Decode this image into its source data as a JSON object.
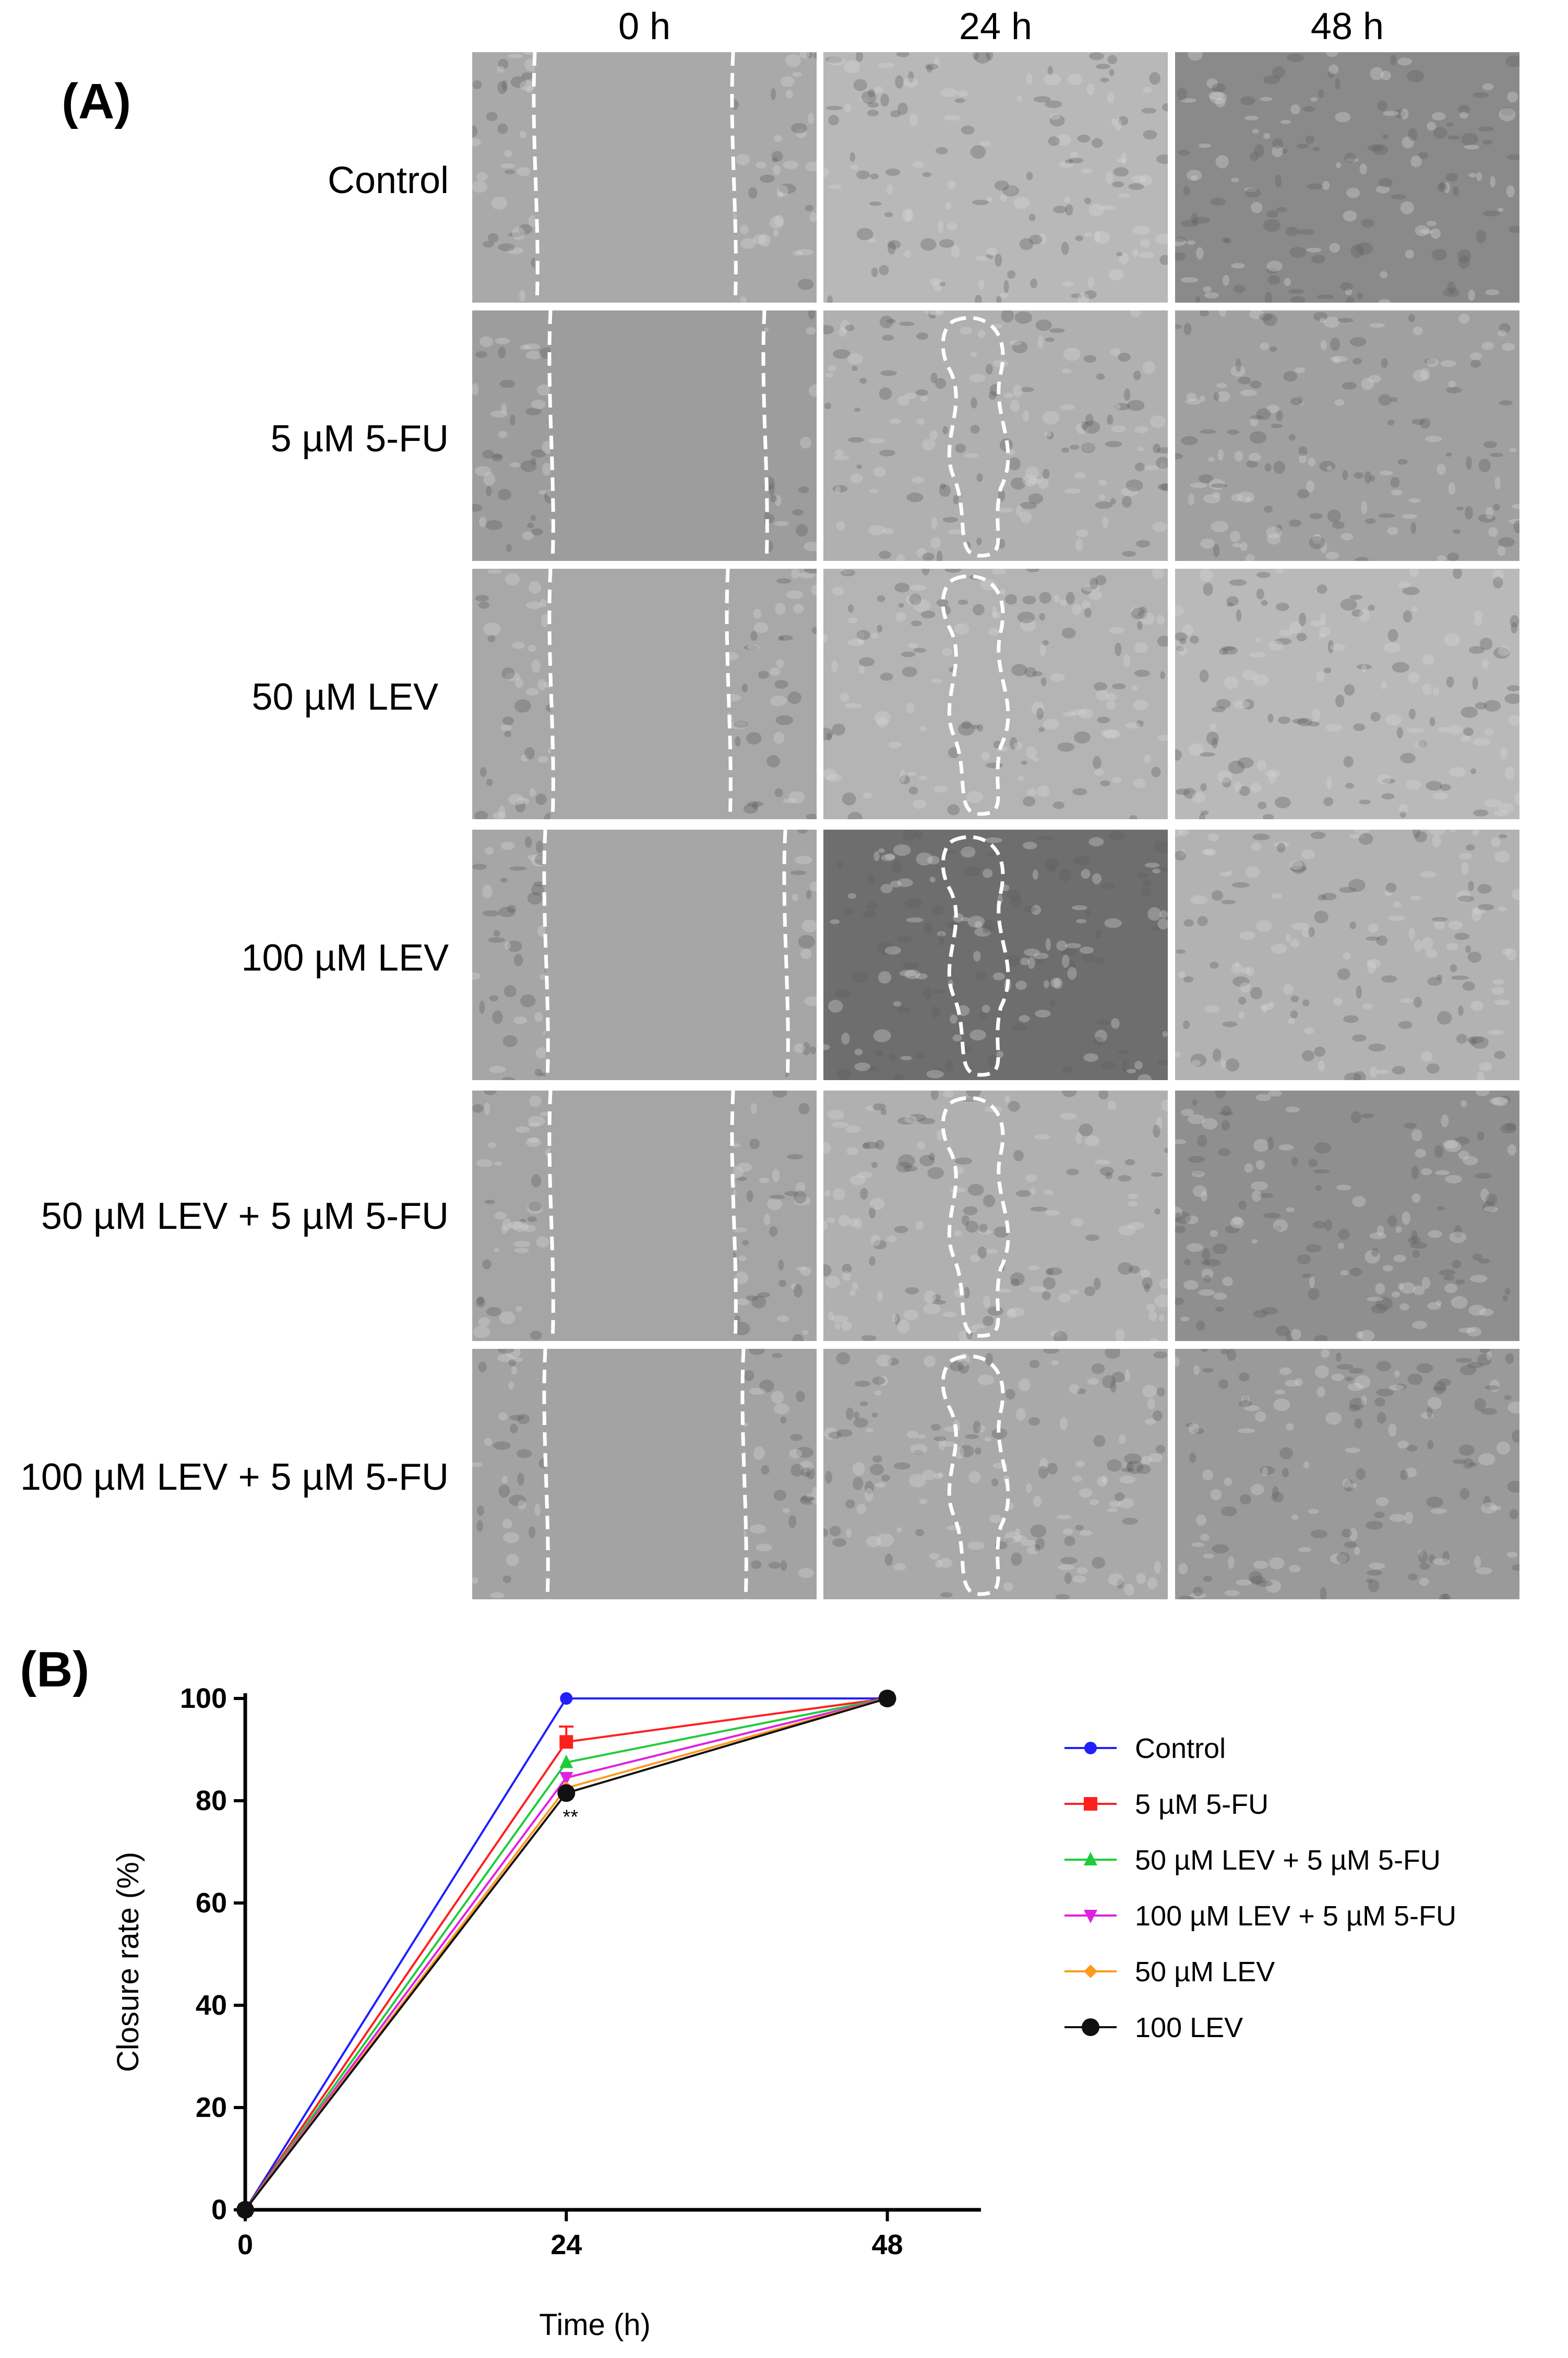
{
  "panel_a": {
    "label": "(A)",
    "columns": [
      "0 h",
      "24 h",
      "48 h"
    ],
    "rows": [
      "Control",
      "5 µM 5-FU",
      "50 µM LEV",
      "100 µM LEV",
      "50 µM LEV + 5 µM 5-FU",
      "100 µM LEV + 5 µM 5-FU"
    ]
  },
  "panel_b": {
    "label": "(B)"
  },
  "chart_data": {
    "type": "line",
    "title": "",
    "xlabel": "Time (h)",
    "ylabel": "Closure rate (%)",
    "x": [
      0,
      24,
      48
    ],
    "xticks": [
      "0",
      "24",
      "48"
    ],
    "yticks": [
      "0",
      "20",
      "40",
      "60",
      "80",
      "100"
    ],
    "xlim": [
      0,
      55
    ],
    "ylim": [
      0,
      100
    ],
    "grid": false,
    "legend_position": "right",
    "significance_marks": [
      "**"
    ],
    "series": [
      {
        "name": "Control",
        "values": [
          0,
          100,
          100
        ],
        "color": "#1f1fff",
        "marker": "circle"
      },
      {
        "name": "5 µM 5-FU",
        "values": [
          0,
          91.5,
          100
        ],
        "color": "#ff1f1f",
        "marker": "square",
        "error": [
          0,
          3,
          0
        ]
      },
      {
        "name": "50 µM LEV + 5 µM 5-FU",
        "values": [
          0,
          87.5,
          100
        ],
        "color": "#1fcc3a",
        "marker": "triangle-up"
      },
      {
        "name": "100 µM LEV + 5 µM 5-FU",
        "values": [
          0,
          84.5,
          100
        ],
        "color": "#e020e0",
        "marker": "triangle-down"
      },
      {
        "name": "50 µM LEV",
        "values": [
          0,
          82.5,
          100
        ],
        "color": "#ff9a1f",
        "marker": "diamond"
      },
      {
        "name": "100 LEV",
        "values": [
          0,
          81.5,
          100
        ],
        "color": "#111111",
        "marker": "circle-large"
      }
    ]
  }
}
